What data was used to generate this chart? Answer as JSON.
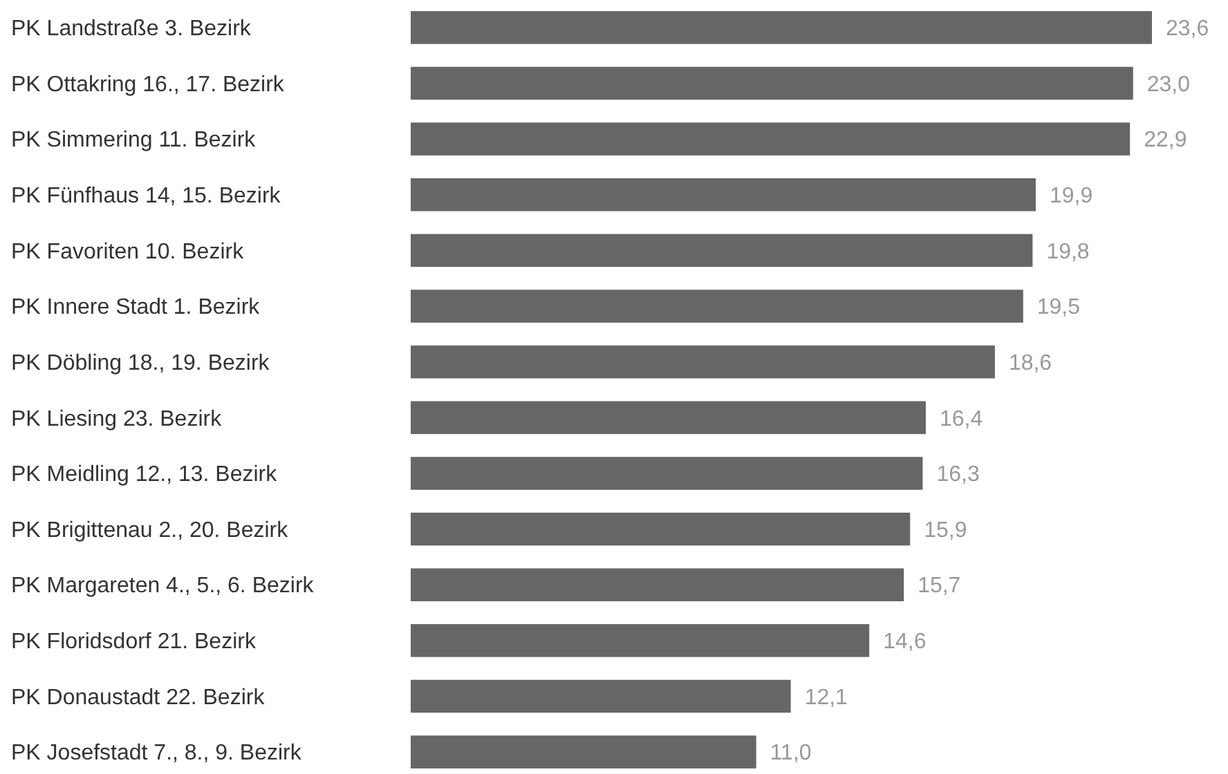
{
  "chart_data": {
    "type": "bar",
    "orientation": "horizontal",
    "categories": [
      "PK Landstraße 3. Bezirk",
      "PK Ottakring 16., 17. Bezirk",
      "PK Simmering 11. Bezirk",
      "PK Fünfhaus 14, 15. Bezirk",
      "PK Favoriten 10. Bezirk",
      "PK Innere Stadt 1. Bezirk",
      "PK Döbling 18., 19. Bezirk",
      "PK Liesing 23. Bezirk",
      "PK Meidling 12., 13. Bezirk",
      "PK Brigittenau 2., 20. Bezirk",
      "PK Margareten 4., 5., 6. Bezirk",
      "PK Floridsdorf 21. Bezirk",
      "PK Donaustadt 22. Bezirk",
      "PK Josefstadt 7., 8., 9. Bezirk"
    ],
    "values": [
      23.6,
      23.0,
      22.9,
      19.9,
      19.8,
      19.5,
      18.6,
      16.4,
      16.3,
      15.9,
      15.7,
      14.6,
      12.1,
      11.0
    ],
    "value_labels": [
      "23,6",
      "23,0",
      "22,9",
      "19,9",
      "19,8",
      "19,5",
      "18,6",
      "16,4",
      "16,3",
      "15,9",
      "15,7",
      "14,6",
      "12,1",
      "11,0"
    ],
    "color": "#666666"
  }
}
